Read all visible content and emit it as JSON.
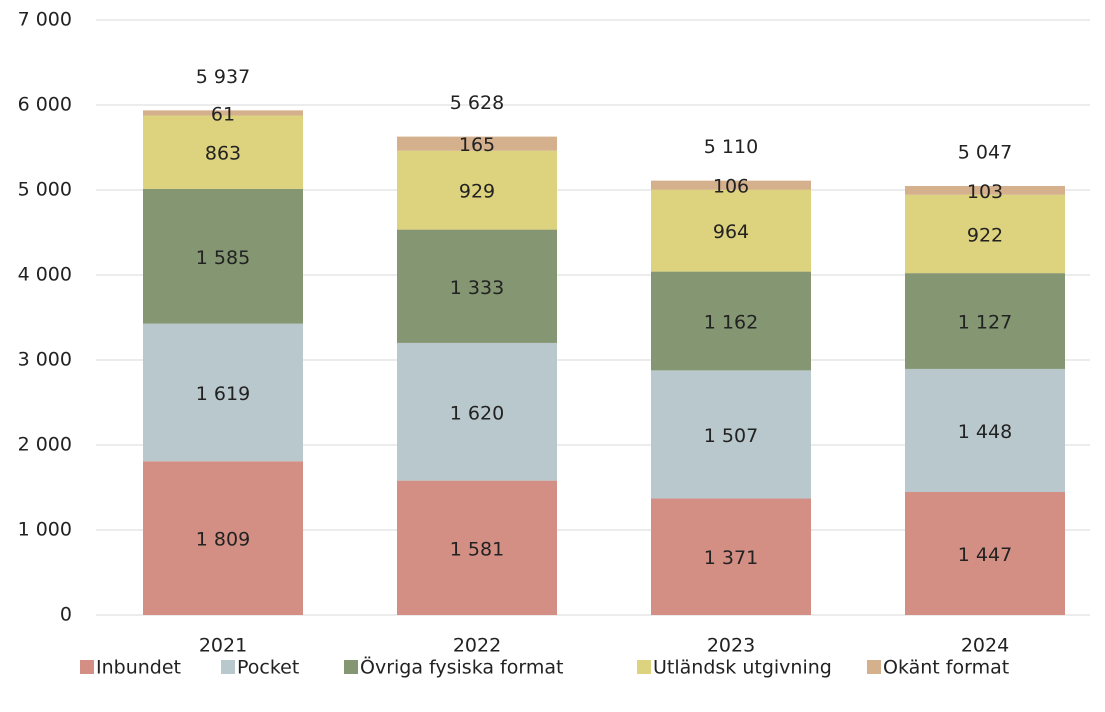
{
  "chart_data": {
    "type": "stacked_bar",
    "categories": [
      "2021",
      "2022",
      "2023",
      "2024"
    ],
    "series": [
      {
        "name": "Inbundet",
        "color": "#d48f84",
        "values": [
          1809,
          1581,
          1371,
          1447
        ],
        "value_labels": [
          "1 809",
          "1 581",
          "1 371",
          "1 447"
        ]
      },
      {
        "name": "Pocket",
        "color": "#b9c8cc",
        "values": [
          1619,
          1620,
          1507,
          1448
        ],
        "value_labels": [
          "1 619",
          "1 620",
          "1 507",
          "1 448"
        ]
      },
      {
        "name": "Övriga fysiska format",
        "color": "#849672",
        "values": [
          1585,
          1333,
          1162,
          1127
        ],
        "value_labels": [
          "1 585",
          "1 333",
          "1 162",
          "1 127"
        ]
      },
      {
        "name": "Utländsk utgivning",
        "color": "#ddd27d",
        "values": [
          863,
          929,
          964,
          922
        ]
      },
      {
        "name": "Okänt format",
        "color": "#d4b08c",
        "values": [
          61,
          165,
          106,
          103
        ]
      }
    ],
    "totals": [
      5937,
      5628,
      5110,
      5047
    ],
    "total_labels": [
      "5 937",
      "5 628",
      "5 110",
      "5 047"
    ],
    "ylim": [
      0,
      7000
    ],
    "yticks": [
      0,
      {
        "value": 1000,
        "label": "1 000"
      },
      {
        "value": 2000,
        "label": "2 000"
      },
      {
        "value": 3000,
        "label": "3 000"
      },
      {
        "value": 4000,
        "label": "4 000"
      },
      {
        "value": 5000,
        "label": "5 000"
      },
      {
        "value": 6000,
        "label": "6 000"
      },
      {
        "value": 7000,
        "label": "7 000"
      }
    ],
    "grid": true,
    "legend": "bottom"
  }
}
